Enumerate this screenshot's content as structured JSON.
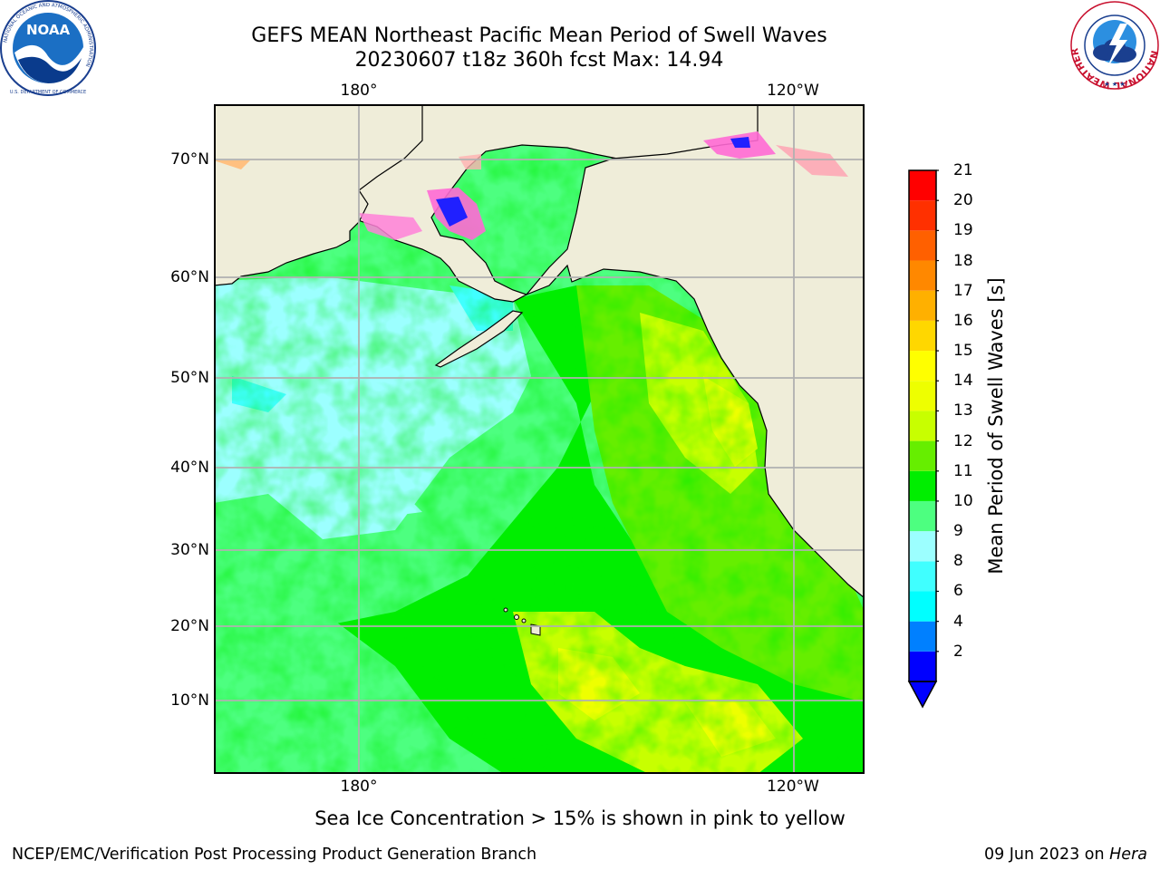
{
  "header": {
    "title_line1": "GEFS MEAN Northeast Pacific Mean Period of Swell Waves",
    "title_line2": "20230607 t18z 360h fcst   Max: 14.94"
  },
  "logos": {
    "noaa_text": "NOAA",
    "noaa_ring_text": "NATIONAL OCEANIC AND ATMOSPHERIC ADMINISTRATION",
    "noaa_bottom_text": "U.S. DEPARTMENT OF COMMERCE",
    "nws_ring_text": "NATIONAL WEATHER SERVICE"
  },
  "map": {
    "lon_labels_top": [
      "180°",
      "120°W"
    ],
    "lon_labels_bottom": [
      "180°",
      "120°W"
    ],
    "lat_labels": [
      "70°N",
      "60°N",
      "50°N",
      "40°N",
      "30°N",
      "20°N",
      "10°N"
    ],
    "colors": {
      "land": "#efedd9",
      "grid": "#b0b0b0"
    }
  },
  "colorbar": {
    "label": "Mean Period of Swell Waves [s]",
    "ticks": [
      "21",
      "20",
      "19",
      "18",
      "17",
      "16",
      "15",
      "14",
      "13",
      "12",
      "11",
      "10",
      "9",
      "8",
      "6",
      "4",
      "2"
    ],
    "colors_bottom_to_top": [
      "#0000ff",
      "#0080ff",
      "#00ffff",
      "#40ffff",
      "#9cffff",
      "#4dff80",
      "#00ee00",
      "#66ee00",
      "#c8ff00",
      "#eeff00",
      "#ffff00",
      "#ffd700",
      "#ffb000",
      "#ff8800",
      "#ff6000",
      "#ff3000",
      "#ff0000"
    ]
  },
  "caption": "Sea Ice Concentration > 15% is shown in pink to yellow",
  "footer": {
    "left": "NCEP/EMC/Verification Post Processing Product Generation Branch",
    "right_prefix": "09 Jun 2023 on ",
    "right_host": "Hera"
  }
}
